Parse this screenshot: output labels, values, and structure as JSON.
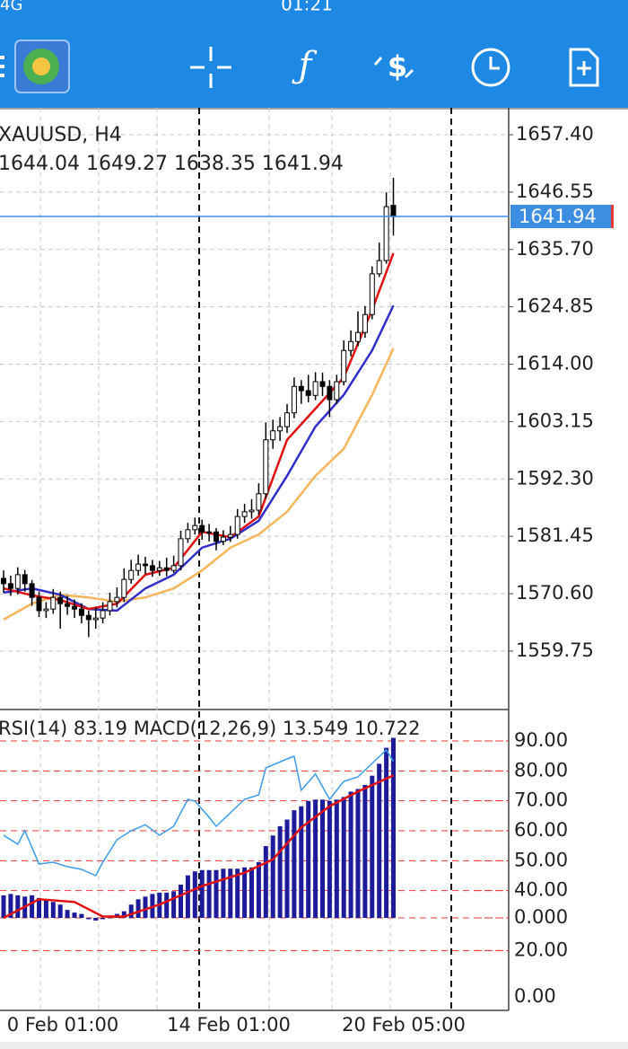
{
  "status": {
    "network": "4G",
    "time": "01:21"
  },
  "chart": {
    "symbol": "XAUUSD, H4",
    "ohlc": "1644.04 1649.27 1638.35 1641.94",
    "ylim": [
      1548.7,
      1662.5
    ],
    "yticks": [
      {
        "value": 1657.4,
        "label": "1657.40"
      },
      {
        "value": 1646.55,
        "label": "1646.55"
      },
      {
        "value": 1635.7,
        "label": "1635.70"
      },
      {
        "value": 1624.85,
        "label": "1624.85"
      },
      {
        "value": 1614,
        "label": "1614.00"
      },
      {
        "value": 1603.15,
        "label": "1603.15"
      },
      {
        "value": 1592.3,
        "label": "1592.30"
      },
      {
        "value": 1581.45,
        "label": "1581.45"
      },
      {
        "value": 1570.6,
        "label": "1570.60"
      },
      {
        "value": 1559.75,
        "label": "1559.75"
      }
    ],
    "price_line_color": "#3d8ee0",
    "candles": [
      [
        1573.5,
        1575.0,
        1570.8,
        1572.5
      ],
      [
        1572.5,
        1574.0,
        1570.2,
        1571.6
      ],
      [
        1571.6,
        1575.6,
        1570.5,
        1574.2
      ],
      [
        1574.2,
        1575.1,
        1571.0,
        1572.5
      ],
      [
        1572.5,
        1573.2,
        1568.3,
        1569.9
      ],
      [
        1569.9,
        1571.0,
        1566.2,
        1567.4
      ],
      [
        1567.4,
        1569.0,
        1566.0,
        1567.7
      ],
      [
        1567.7,
        1571.5,
        1566.8,
        1569.9
      ],
      [
        1569.9,
        1571.0,
        1564.0,
        1568.7
      ],
      [
        1568.7,
        1570.2,
        1566.6,
        1568.2
      ],
      [
        1568.2,
        1569.5,
        1566.0,
        1567.7
      ],
      [
        1567.7,
        1568.8,
        1565.0,
        1566.5
      ],
      [
        1566.5,
        1567.4,
        1562.4,
        1565.7
      ],
      [
        1565.7,
        1568.0,
        1564.0,
        1566.0
      ],
      [
        1566.0,
        1569.0,
        1565.0,
        1567.4
      ],
      [
        1567.4,
        1570.8,
        1566.5,
        1569.1
      ],
      [
        1569.1,
        1571.8,
        1568.0,
        1569.9
      ],
      [
        1569.9,
        1575.4,
        1569.0,
        1573.3
      ],
      [
        1573.3,
        1577.0,
        1572.5,
        1575.0
      ],
      [
        1575.0,
        1578.0,
        1574.0,
        1576.2
      ],
      [
        1576.2,
        1577.6,
        1574.3,
        1575.9
      ],
      [
        1575.9,
        1577.0,
        1573.8,
        1575.0
      ],
      [
        1575.0,
        1576.8,
        1574.0,
        1575.5
      ],
      [
        1575.5,
        1577.4,
        1573.9,
        1575.0
      ],
      [
        1575.0,
        1577.8,
        1574.5,
        1575.9
      ],
      [
        1575.9,
        1582.5,
        1575.0,
        1581.0
      ],
      [
        1581.0,
        1584.0,
        1580.2,
        1582.7
      ],
      [
        1582.7,
        1585.0,
        1581.8,
        1583.5
      ],
      [
        1583.5,
        1584.6,
        1580.8,
        1582.3
      ],
      [
        1582.3,
        1583.8,
        1580.5,
        1582.3
      ],
      [
        1582.3,
        1583.0,
        1578.8,
        1580.5
      ],
      [
        1580.5,
        1582.6,
        1579.8,
        1581.3
      ],
      [
        1581.3,
        1583.4,
        1580.4,
        1581.8
      ],
      [
        1581.8,
        1586.6,
        1581.0,
        1585.2
      ],
      [
        1585.2,
        1587.6,
        1584.0,
        1586.1
      ],
      [
        1586.1,
        1588.5,
        1584.8,
        1586.4
      ],
      [
        1586.4,
        1591.5,
        1585.5,
        1589.5
      ],
      [
        1589.5,
        1603.0,
        1588.6,
        1599.7
      ],
      [
        1599.7,
        1603.5,
        1598.0,
        1601.4
      ],
      [
        1601.4,
        1604.0,
        1599.5,
        1602.2
      ],
      [
        1602.2,
        1606.5,
        1601.0,
        1604.8
      ],
      [
        1604.8,
        1611.5,
        1603.8,
        1609.8
      ],
      [
        1609.8,
        1611.0,
        1606.5,
        1609.0
      ],
      [
        1609.0,
        1612.0,
        1606.8,
        1608.1
      ],
      [
        1608.1,
        1612.5,
        1607.2,
        1610.7
      ],
      [
        1610.7,
        1612.4,
        1608.0,
        1609.8
      ],
      [
        1609.8,
        1611.0,
        1604.0,
        1607.3
      ],
      [
        1607.3,
        1612.0,
        1606.5,
        1610.7
      ],
      [
        1610.7,
        1618.5,
        1610.0,
        1616.6
      ],
      [
        1616.6,
        1620.4,
        1615.5,
        1618.3
      ],
      [
        1618.3,
        1624.0,
        1617.4,
        1620.0
      ],
      [
        1620.0,
        1625.0,
        1619.0,
        1623.4
      ],
      [
        1623.4,
        1632.5,
        1622.5,
        1631.1
      ],
      [
        1631.1,
        1637.0,
        1630.5,
        1633.6
      ],
      [
        1633.6,
        1646.5,
        1633.0,
        1643.8
      ],
      [
        1644.04,
        1649.27,
        1638.35,
        1641.94
      ]
    ],
    "ma_index": [
      0,
      4,
      8,
      12,
      16,
      20,
      24,
      28,
      32,
      36,
      40,
      44,
      48,
      52,
      55
    ],
    "moving_averages": [
      {
        "color": "#e01010",
        "values": [
          1571.6,
          1570.3,
          1569.4,
          1567.7,
          1568.7,
          1574.2,
          1575.5,
          1582.3,
          1581.3,
          1585.2,
          1599.7,
          1605.6,
          1611.5,
          1624.3,
          1635.0
        ]
      },
      {
        "color": "#3030c8",
        "values": [
          1570.8,
          1571.6,
          1570.4,
          1567.7,
          1567.4,
          1571.6,
          1574.2,
          1579.3,
          1581.0,
          1584.4,
          1592.9,
          1602.2,
          1608.2,
          1616.6,
          1625.1
        ]
      },
      {
        "color": "#f5b55a",
        "values": [
          1565.7,
          1568.7,
          1570.4,
          1569.9,
          1569.1,
          1569.9,
          1571.6,
          1575.0,
          1579.3,
          1581.8,
          1586.1,
          1592.9,
          1598.0,
          1608.2,
          1617.0
        ]
      }
    ],
    "x_labels": [
      "0 Feb 01:00",
      "14 Feb 01:00",
      "20 Feb 05:00"
    ],
    "indicator": {
      "label": "RSI(14) 83.19 MACD(12,26,9) 13.549 10.722",
      "rsi_lim": [
        0,
        100.5
      ],
      "rsi_ticks": [
        {
          "value": 90,
          "label": "90.00"
        },
        {
          "value": 80,
          "label": "80.00"
        },
        {
          "value": 70,
          "label": "70.00"
        },
        {
          "value": 60,
          "label": "60.00"
        },
        {
          "value": 50,
          "label": "50.00"
        },
        {
          "value": 40,
          "label": "40.00"
        },
        {
          "value": 20,
          "label": "20.00"
        },
        {
          "value": 0,
          "label": "0.00"
        }
      ],
      "rsi_color": "#3d9be9",
      "rsi_index": [
        0,
        2,
        3,
        5,
        7,
        9,
        11,
        13,
        14,
        16,
        18,
        20,
        22,
        24,
        26,
        27,
        29,
        30,
        32,
        34,
        36,
        37,
        40,
        41,
        42,
        44,
        46,
        48,
        50,
        52,
        54,
        55
      ],
      "rsi_values": [
        58.5,
        55.5,
        60,
        48.9,
        49.5,
        48,
        47.1,
        45,
        49.5,
        57,
        60,
        62,
        58.5,
        61.5,
        70.5,
        69.9,
        64.5,
        61.5,
        66,
        70.5,
        72,
        81,
        84,
        84.9,
        73.5,
        79,
        70.5,
        76.5,
        78,
        82.5,
        87,
        83.19
      ],
      "macd_lim": [
        -6.96,
        15.68
      ],
      "macd_ticks": [
        {
          "value": 0,
          "label": "0.000"
        }
      ],
      "macd_color": "#1c1c9a",
      "macd_values": [
        1.7,
        1.8,
        1.7,
        1.6,
        1.7,
        1.5,
        1.3,
        1.2,
        1.0,
        0.6,
        0.4,
        0.3,
        -0.1,
        -0.2,
        -0.1,
        0.0,
        0.3,
        0.5,
        1.0,
        1.4,
        1.6,
        1.8,
        1.9,
        1.9,
        2.0,
        2.5,
        3.2,
        3.5,
        3.6,
        3.6,
        3.6,
        3.7,
        3.7,
        3.7,
        3.8,
        3.8,
        4.2,
        5.4,
        6.2,
        6.9,
        7.4,
        8.1,
        8.4,
        8.8,
        8.9,
        8.9,
        8.8,
        8.9,
        9.1,
        9.5,
        9.7,
        10.0,
        10.7,
        11.6,
        12.8,
        13.549
      ],
      "signal_color": "#e01010",
      "signal_index": [
        0,
        5,
        10,
        14,
        17,
        22,
        28,
        34,
        38,
        42,
        46,
        50,
        55
      ],
      "signal_values": [
        0.0,
        1.4,
        1.2,
        0.1,
        0.1,
        1.0,
        2.4,
        3.4,
        4.4,
        6.8,
        8.4,
        9.5,
        10.722
      ]
    }
  }
}
